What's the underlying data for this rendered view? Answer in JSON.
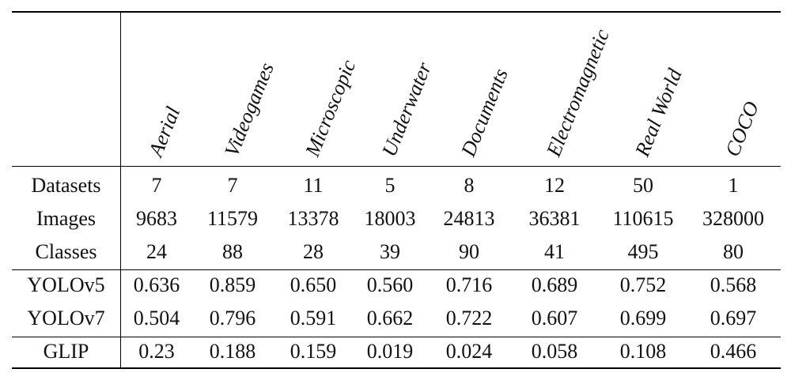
{
  "columns": [
    "Aerial",
    "Videogames",
    "Microscopic",
    "Underwater",
    "Documents",
    "Electromagnetic",
    "Real World",
    "COCO"
  ],
  "rows": [
    {
      "label": "Datasets",
      "values": [
        "7",
        "7",
        "11",
        "5",
        "8",
        "12",
        "50",
        "1"
      ]
    },
    {
      "label": "Images",
      "values": [
        "9683",
        "11579",
        "13378",
        "18003",
        "24813",
        "36381",
        "110615",
        "328000"
      ]
    },
    {
      "label": "Classes",
      "values": [
        "24",
        "88",
        "28",
        "39",
        "90",
        "41",
        "495",
        "80"
      ]
    },
    {
      "label": "YOLOv5",
      "values": [
        "0.636",
        "0.859",
        "0.650",
        "0.560",
        "0.716",
        "0.689",
        "0.752",
        "0.568"
      ]
    },
    {
      "label": "YOLOv7",
      "values": [
        "0.504",
        "0.796",
        "0.591",
        "0.662",
        "0.722",
        "0.607",
        "0.699",
        "0.697"
      ]
    },
    {
      "label": "GLIP",
      "values": [
        "0.23",
        "0.188",
        "0.159",
        "0.019",
        "0.024",
        "0.058",
        "0.108",
        "0.466"
      ]
    }
  ]
}
